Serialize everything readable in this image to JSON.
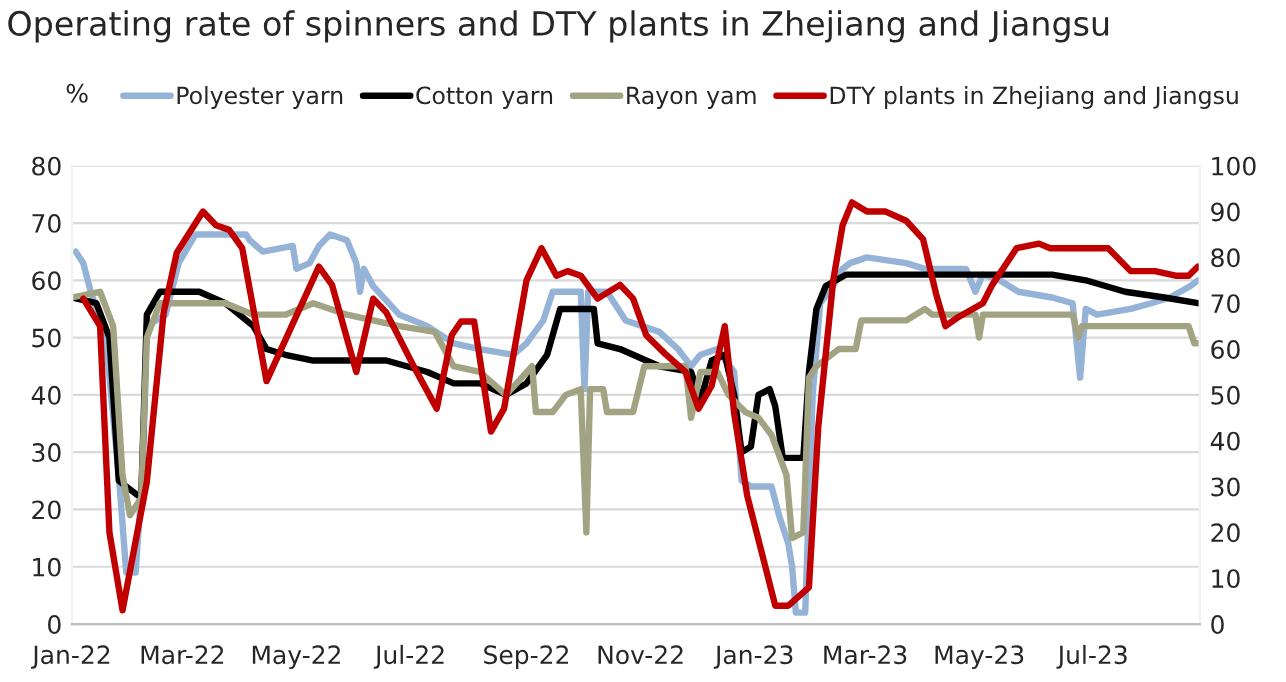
{
  "chart_data": {
    "type": "line",
    "title": "Operating rate of spinners and DTY plants in Zhejiang and Jiangsu",
    "ylabel": "%",
    "xlim": [
      "2022-01-01",
      "2023-08-27"
    ],
    "xticks": [
      {
        "value": "2022-01-01",
        "label": "Jan-22"
      },
      {
        "value": "2022-03-01",
        "label": "Mar-22"
      },
      {
        "value": "2022-05-01",
        "label": "May-22"
      },
      {
        "value": "2022-07-01",
        "label": "Jul-22"
      },
      {
        "value": "2022-09-01",
        "label": "Sep-22"
      },
      {
        "value": "2022-11-01",
        "label": "Nov-22"
      },
      {
        "value": "2023-01-01",
        "label": "Jan-23"
      },
      {
        "value": "2023-03-01",
        "label": "Mar-23"
      },
      {
        "value": "2023-05-01",
        "label": "May-23"
      },
      {
        "value": "2023-07-01",
        "label": "Jul-23"
      }
    ],
    "ylim": [
      0,
      80
    ],
    "yticks": [
      0,
      10,
      20,
      30,
      40,
      50,
      60,
      70,
      80
    ],
    "y2lim": [
      0,
      100
    ],
    "y2ticks": [
      0,
      10,
      20,
      30,
      40,
      50,
      60,
      70,
      80,
      90,
      100
    ],
    "grid": "y",
    "legend": "top",
    "line_style": "solid",
    "series": [
      {
        "name": "Polyester yarn",
        "color": "#95b3d7",
        "x": [
          "2022-01-03",
          "2022-01-07",
          "2022-01-11",
          "2022-01-19",
          "2022-01-26",
          "2022-01-30",
          "2022-02-04",
          "2022-02-08",
          "2022-02-10",
          "2022-02-20",
          "2022-02-27",
          "2022-03-08",
          "2022-04-04",
          "2022-04-06",
          "2022-04-13",
          "2022-04-29",
          "2022-05-01",
          "2022-05-08",
          "2022-05-13",
          "2022-05-19",
          "2022-05-28",
          "2022-06-02",
          "2022-06-04",
          "2022-06-06",
          "2022-06-11",
          "2022-06-25",
          "2022-07-10",
          "2022-07-24",
          "2022-08-07",
          "2022-08-25",
          "2022-09-01",
          "2022-09-10",
          "2022-09-15",
          "2022-09-30",
          "2022-10-02",
          "2022-10-04",
          "2022-10-14",
          "2022-10-24",
          "2022-11-11",
          "2022-11-21",
          "2022-11-28",
          "2022-12-03",
          "2022-12-12",
          "2022-12-21",
          "2022-12-25",
          "2022-12-30",
          "2023-01-10",
          "2023-01-14",
          "2023-01-19",
          "2023-01-21",
          "2023-01-23",
          "2023-01-28",
          "2023-02-01",
          "2023-02-05",
          "2023-02-12",
          "2023-02-17",
          "2023-02-21",
          "2023-03-02",
          "2023-03-23",
          "2023-04-02",
          "2023-04-24",
          "2023-04-29",
          "2023-05-03",
          "2023-05-12",
          "2023-05-22",
          "2023-06-09",
          "2023-06-20",
          "2023-06-24",
          "2023-06-27",
          "2023-07-03",
          "2023-07-21",
          "2023-08-01",
          "2023-08-11",
          "2023-08-22",
          "2023-08-26"
        ],
        "values": [
          65,
          63,
          58,
          50,
          26,
          9,
          9,
          28,
          52,
          54,
          63,
          68,
          68,
          67,
          65,
          66,
          62,
          63,
          66,
          68,
          67,
          63,
          58,
          62,
          59,
          54,
          52,
          49,
          48,
          47,
          49,
          53,
          58,
          58,
          41,
          58,
          58,
          53,
          51,
          48,
          45,
          47,
          48,
          44,
          25,
          24,
          24,
          19,
          14,
          10,
          2,
          2,
          40,
          56,
          59,
          62,
          63,
          64,
          63,
          62,
          62,
          58,
          61,
          60,
          58,
          57,
          56,
          43,
          55,
          54,
          55,
          56,
          57,
          59,
          60
        ]
      },
      {
        "name": "Cotton yarn",
        "color": "#000000",
        "x": [
          "2022-01-01",
          "2022-01-14",
          "2022-01-21",
          "2022-01-26",
          "2022-02-07",
          "2022-02-10",
          "2022-02-17",
          "2022-03-10",
          "2022-03-24",
          "2022-04-08",
          "2022-04-15",
          "2022-04-25",
          "2022-05-10",
          "2022-05-28",
          "2022-06-18",
          "2022-07-10",
          "2022-07-24",
          "2022-08-07",
          "2022-08-21",
          "2022-09-01",
          "2022-09-12",
          "2022-09-19",
          "2022-10-07",
          "2022-10-09",
          "2022-10-21",
          "2022-11-11",
          "2022-11-28",
          "2022-12-03",
          "2022-12-09",
          "2022-12-16",
          "2022-12-21",
          "2022-12-25",
          "2022-12-30",
          "2023-01-03",
          "2023-01-09",
          "2023-01-12",
          "2023-01-16",
          "2023-01-27",
          "2023-01-30",
          "2023-02-03",
          "2023-02-08",
          "2023-02-19",
          "2023-03-03",
          "2023-06-09",
          "2023-06-27",
          "2023-07-18",
          "2023-08-08",
          "2023-08-26"
        ],
        "values": [
          57,
          56,
          50,
          25,
          22,
          54,
          58,
          58,
          56,
          52,
          48,
          47,
          46,
          46,
          46,
          44,
          42,
          42,
          40,
          42,
          47,
          55,
          55,
          49,
          48,
          45,
          44,
          39,
          46,
          47,
          40,
          30,
          31,
          40,
          41,
          38,
          29,
          29,
          44,
          55,
          59,
          61,
          61,
          61,
          60,
          58,
          57,
          56
        ]
      },
      {
        "name": "Rayon yam",
        "color": "#a2a382",
        "x": [
          "2022-01-01",
          "2022-01-16",
          "2022-01-23",
          "2022-01-28",
          "2022-02-01",
          "2022-02-07",
          "2022-02-10",
          "2022-02-17",
          "2022-03-24",
          "2022-04-08",
          "2022-04-25",
          "2022-05-10",
          "2022-05-28",
          "2022-06-25",
          "2022-07-14",
          "2022-07-24",
          "2022-08-07",
          "2022-08-21",
          "2022-09-04",
          "2022-09-06",
          "2022-09-15",
          "2022-09-22",
          "2022-09-30",
          "2022-10-03",
          "2022-10-05",
          "2022-10-12",
          "2022-10-14",
          "2022-10-28",
          "2022-11-03",
          "2022-11-25",
          "2022-11-28",
          "2022-12-03",
          "2022-12-12",
          "2022-12-18",
          "2022-12-27",
          "2023-01-03",
          "2023-01-10",
          "2023-01-18",
          "2023-01-21",
          "2023-01-27",
          "2023-01-30",
          "2023-02-03",
          "2023-02-15",
          "2023-02-24",
          "2023-02-27",
          "2023-03-23",
          "2023-04-02",
          "2023-04-06",
          "2023-04-29",
          "2023-05-01",
          "2023-05-03",
          "2023-06-09",
          "2023-06-20",
          "2023-06-23",
          "2023-06-25",
          "2023-08-21",
          "2023-08-24",
          "2023-08-26"
        ],
        "values": [
          57,
          58,
          52,
          26,
          19,
          22,
          50,
          56,
          56,
          54,
          54,
          56,
          54,
          52,
          51,
          45,
          44,
          40,
          45,
          37,
          37,
          40,
          41,
          16,
          41,
          41,
          37,
          37,
          45,
          45,
          36,
          44,
          44,
          40,
          37,
          36,
          33,
          26,
          15,
          16,
          43,
          45,
          48,
          48,
          53,
          53,
          55,
          54,
          54,
          50,
          54,
          54,
          54,
          50,
          52,
          52,
          49,
          49
        ]
      },
      {
        "name": "DTY plants in Zhejiang and Jiangsu",
        "color": "#c00000",
        "axis": "y2",
        "x": [
          "2022-01-07",
          "2022-01-16",
          "2022-01-21",
          "2022-01-28",
          "2022-02-10",
          "2022-02-19",
          "2022-02-26",
          "2022-03-12",
          "2022-03-19",
          "2022-03-26",
          "2022-04-02",
          "2022-04-15",
          "2022-05-13",
          "2022-05-20",
          "2022-06-02",
          "2022-06-11",
          "2022-06-18",
          "2022-07-03",
          "2022-07-15",
          "2022-07-23",
          "2022-07-28",
          "2022-08-04",
          "2022-08-13",
          "2022-08-20",
          "2022-09-01",
          "2022-09-09",
          "2022-09-17",
          "2022-09-23",
          "2022-09-30",
          "2022-10-09",
          "2022-10-21",
          "2022-10-28",
          "2022-11-04",
          "2022-11-14",
          "2022-11-25",
          "2022-12-02",
          "2022-12-09",
          "2022-12-16",
          "2022-12-21",
          "2022-12-28",
          "2023-01-07",
          "2023-01-12",
          "2023-01-19",
          "2023-01-30",
          "2023-02-04",
          "2023-02-12",
          "2023-02-17",
          "2023-02-22",
          "2023-03-02",
          "2023-03-12",
          "2023-03-23",
          "2023-04-01",
          "2023-04-08",
          "2023-04-13",
          "2023-04-20",
          "2023-05-03",
          "2023-05-08",
          "2023-05-21",
          "2023-06-02",
          "2023-06-08",
          "2023-07-09",
          "2023-07-21",
          "2023-08-03",
          "2023-08-14",
          "2023-08-21",
          "2023-08-26"
        ],
        "values": [
          71,
          65,
          20,
          3,
          31,
          68,
          81,
          90,
          87,
          86,
          82,
          53,
          78,
          74,
          55,
          71,
          68,
          56,
          47,
          63,
          66,
          66,
          42,
          47,
          75,
          82,
          76,
          77,
          76,
          71,
          74,
          71,
          63,
          59,
          55,
          47,
          52,
          65,
          46,
          28,
          12,
          4,
          4,
          8,
          43,
          75,
          87,
          92,
          90,
          90,
          88,
          84,
          72,
          65,
          67,
          70,
          74,
          82,
          83,
          82,
          82,
          77,
          77,
          76,
          76,
          78
        ]
      }
    ]
  }
}
